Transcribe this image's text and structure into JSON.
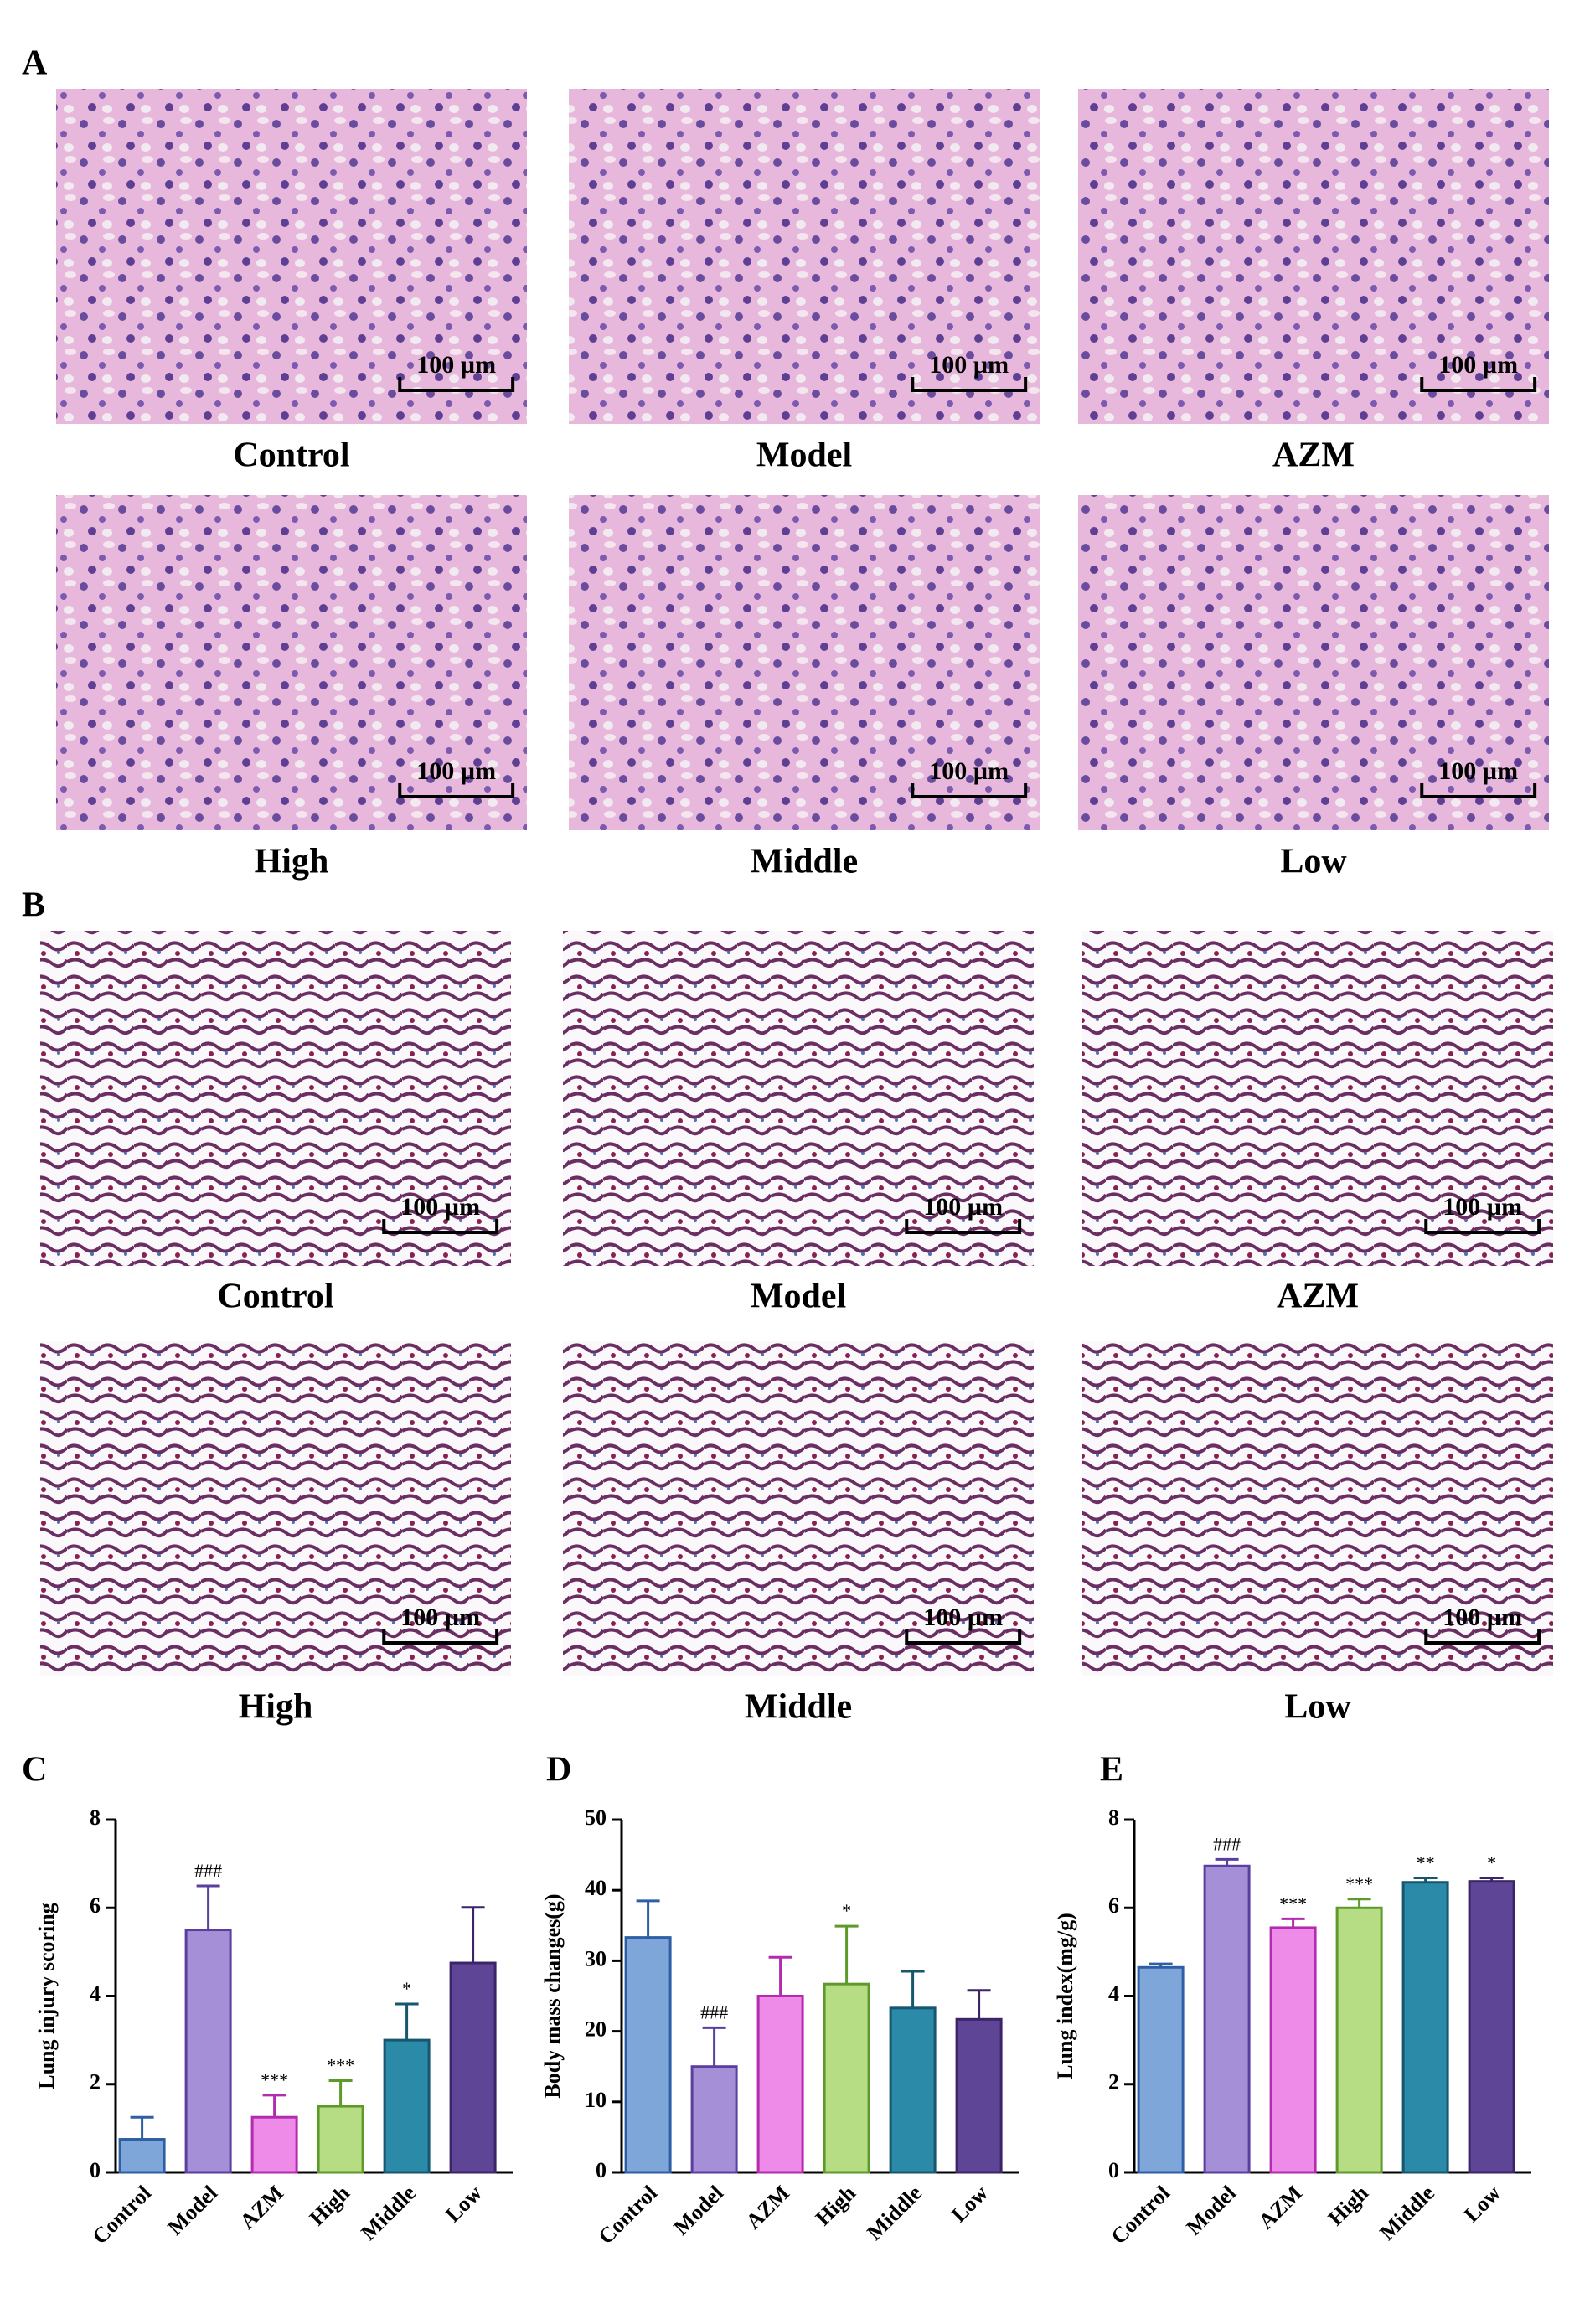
{
  "panel_a": {
    "label": "A",
    "images": [
      {
        "caption": "Control",
        "scale_bar": "100 µm"
      },
      {
        "caption": "Model",
        "scale_bar": "100 µm"
      },
      {
        "caption": "AZM",
        "scale_bar": "100 µm"
      },
      {
        "caption": "High",
        "scale_bar": "100 µm"
      },
      {
        "caption": "Middle",
        "scale_bar": "100 µm"
      },
      {
        "caption": "Low",
        "scale_bar": "100 µm"
      }
    ]
  },
  "panel_b": {
    "label": "B",
    "images": [
      {
        "caption": "Control",
        "scale_bar": "100 µm"
      },
      {
        "caption": "Model",
        "scale_bar": "100 µm"
      },
      {
        "caption": "AZM",
        "scale_bar": "100 µm"
      },
      {
        "caption": "High",
        "scale_bar": "100 µm"
      },
      {
        "caption": "Middle",
        "scale_bar": "100 µm"
      },
      {
        "caption": "Low",
        "scale_bar": "100 µm"
      }
    ]
  },
  "chart_data": [
    {
      "type": "bar",
      "label": "C",
      "y_label": "Lung injury scoring",
      "categories": [
        "Control",
        "Model",
        "AZM",
        "High",
        "Middle",
        "Low"
      ],
      "values": [
        0.75,
        5.5,
        1.25,
        1.5,
        3.0,
        4.75
      ],
      "errors": [
        0.5,
        1.0,
        0.5,
        0.58,
        0.82,
        1.26
      ],
      "annotations": [
        null,
        "###",
        "***",
        "***",
        "*",
        null
      ],
      "colors": [
        "#7ea6d9",
        "#a58fd6",
        "#ee8be8",
        "#b6dc84",
        "#2a8aa8",
        "#5e4596"
      ],
      "edge_colors": [
        "#2e5fa5",
        "#5a3fa0",
        "#b32cb0",
        "#5d9a2a",
        "#17566f",
        "#3b2468"
      ],
      "ylim": [
        0,
        8
      ],
      "yticks": [
        0,
        2,
        4,
        6,
        8
      ]
    },
    {
      "type": "bar",
      "label": "D",
      "y_label": "Body mass changes(g)",
      "categories": [
        "Control",
        "Model",
        "AZM",
        "High",
        "Middle",
        "Low"
      ],
      "values": [
        33.3,
        15.0,
        25.0,
        26.7,
        23.3,
        21.7
      ],
      "errors": [
        5.2,
        5.5,
        5.5,
        8.2,
        5.2,
        4.1
      ],
      "annotations": [
        null,
        "###",
        null,
        "*",
        null,
        null
      ],
      "colors": [
        "#7ea6d9",
        "#a58fd6",
        "#ee8be8",
        "#b6dc84",
        "#2a8aa8",
        "#5e4596"
      ],
      "edge_colors": [
        "#2e5fa5",
        "#5a3fa0",
        "#b32cb0",
        "#5d9a2a",
        "#17566f",
        "#3b2468"
      ],
      "ylim": [
        0,
        50
      ],
      "yticks": [
        0,
        10,
        20,
        30,
        40,
        50
      ]
    },
    {
      "type": "bar",
      "label": "E",
      "y_label": "Lung index(mg/g)",
      "categories": [
        "Control",
        "Model",
        "AZM",
        "High",
        "Middle",
        "Low"
      ],
      "values": [
        4.65,
        6.95,
        5.55,
        6.0,
        6.58,
        6.6
      ],
      "errors": [
        0.08,
        0.15,
        0.2,
        0.2,
        0.1,
        0.08
      ],
      "annotations": [
        null,
        "###",
        "***",
        "***",
        "**",
        "*"
      ],
      "colors": [
        "#7ea6d9",
        "#a58fd6",
        "#ee8be8",
        "#b6dc84",
        "#2a8aa8",
        "#5e4596"
      ],
      "edge_colors": [
        "#2e5fa5",
        "#5a3fa0",
        "#b32cb0",
        "#5d9a2a",
        "#17566f",
        "#3b2468"
      ],
      "ylim": [
        0,
        8
      ],
      "yticks": [
        0,
        2,
        4,
        6,
        8
      ]
    }
  ]
}
